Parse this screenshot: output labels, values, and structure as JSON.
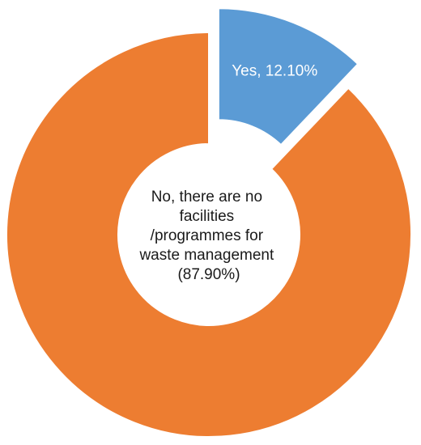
{
  "chart_data": {
    "type": "pie",
    "variant": "donut",
    "exploded_slice": "Yes",
    "slices": [
      {
        "name": "Yes",
        "value": 12.1,
        "label": "Yes, 12.10%",
        "color": "#5b9bd5",
        "label_color": "#ffffff"
      },
      {
        "name": "No",
        "value": 87.9,
        "label_lines": [
          "No, there are no",
          "facilities",
          "/programmes for",
          "waste management",
          "(87.90%)"
        ],
        "color": "#ed7d31",
        "label_color": "#1a1a1a"
      }
    ]
  }
}
